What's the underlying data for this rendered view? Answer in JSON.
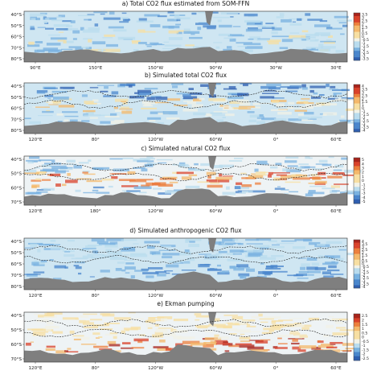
{
  "chart_data": [
    {
      "type": "heatmap",
      "title": "a) Total CO2 flux estimated from SOM-FFN",
      "lat_ticks": [
        "40°S",
        "50°S",
        "60°S",
        "70°S",
        "80°S"
      ],
      "lon_ticks": [
        "90°E",
        "150°E",
        "150°W",
        "90°W",
        "30°W",
        "30°E"
      ],
      "colorbar_ticks": [
        "3.5",
        "3",
        "2.5",
        "2",
        "1.5",
        "1",
        "0.5",
        "0",
        "-0.5",
        "-1",
        "-1.5",
        "-2",
        "-2.5",
        "-3",
        "-3.5"
      ],
      "overlay_contours": false
    },
    {
      "type": "heatmap",
      "title": "b) Simulated total CO2 flux",
      "lat_ticks": [
        "40°S",
        "50°S",
        "60°S",
        "70°S",
        "80°S"
      ],
      "lon_ticks": [
        "120°E",
        "80°",
        "120°W",
        "60°W",
        "0°",
        "60°E"
      ],
      "colorbar_ticks": [
        "4",
        "3.5",
        "3",
        "2.5",
        "2",
        "1.5",
        "1",
        "0",
        "-1",
        "-1.5",
        "-2",
        "-2.5",
        "-3",
        "-3.5",
        "-4"
      ],
      "overlay_contours": true
    },
    {
      "type": "heatmap",
      "title": "c) Simulated natural CO2 flux",
      "lat_ticks": [
        "40°S",
        "50°S",
        "60°S",
        "70°S"
      ],
      "lon_ticks": [
        "120°E",
        "180°",
        "120°W",
        "60°W",
        "0°",
        "60°E"
      ],
      "colorbar_ticks": [
        "5",
        "4",
        "3",
        "2",
        "1",
        "0",
        "-1",
        "-2",
        "-3",
        "-4",
        "-5"
      ],
      "overlay_contours": true
    },
    {
      "type": "heatmap",
      "title": "d) Simulated anthropogenic CO2 flux",
      "lat_ticks": [
        "40°S",
        "50°S",
        "60°S",
        "70°S",
        "80°S"
      ],
      "lon_ticks": [
        "120°E",
        "80°",
        "120°W",
        "60°W",
        "0°",
        "60°E"
      ],
      "colorbar_ticks": [
        "4",
        "3.5",
        "3",
        "2.5",
        "2",
        "1.5",
        "1",
        "0.5",
        "0",
        "-0.5",
        "-1",
        "-1.5",
        "-2",
        "-2.5",
        "-3",
        "-3.5",
        "-4"
      ],
      "overlay_contours": true
    },
    {
      "type": "heatmap",
      "title": "e) Ekman pumping",
      "lat_ticks": [
        "40°S",
        "50°S",
        "60°S",
        "70°S"
      ],
      "lon_ticks": [
        "120°E",
        "80°",
        "120°W",
        "60°W",
        "0°",
        "60°E"
      ],
      "colorbar_ticks": [
        "2.5",
        "2",
        "1.5",
        "1",
        "0.5",
        "0",
        "-0.5",
        "-1",
        "-1.5",
        "-2",
        "-2.5"
      ],
      "overlay_contours": true
    }
  ],
  "colors": {
    "land": "#7f7f7f",
    "ocean_base": "#d9ecf4",
    "colormap": [
      "#2f5fb0",
      "#4a86cc",
      "#79b2e0",
      "#b9dcee",
      "#f2f2e6",
      "#f7dfa2",
      "#f4b86a",
      "#ec7f3c",
      "#d9422a",
      "#a8241c"
    ]
  }
}
